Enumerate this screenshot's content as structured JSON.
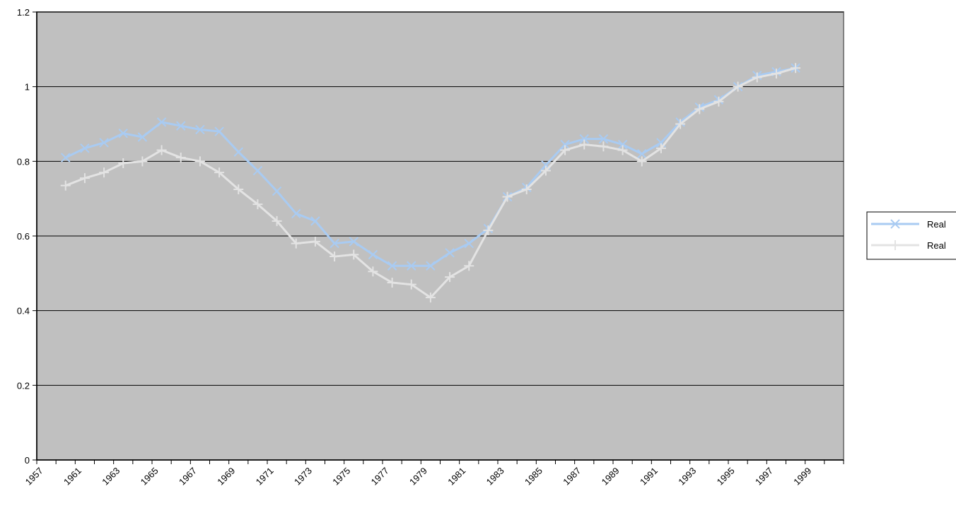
{
  "chart_data": {
    "type": "line",
    "categories": [
      "1957",
      null,
      "1961",
      null,
      "1963",
      null,
      "1965",
      null,
      "1967",
      null,
      "1969",
      null,
      "1971",
      null,
      "1973",
      null,
      "1975",
      null,
      "1977",
      null,
      "1979",
      null,
      "1981",
      null,
      "1983",
      null,
      "1985",
      null,
      "1987",
      null,
      "1989",
      null,
      "1991",
      null,
      "1993",
      null,
      "1995",
      null,
      "1997",
      null,
      "1999",
      null
    ],
    "series": [
      {
        "name": "Real",
        "color": "#a9cbf2",
        "marker": "x",
        "values": [
          null,
          0.81,
          0.835,
          0.85,
          0.875,
          0.865,
          0.905,
          0.895,
          0.885,
          0.88,
          0.825,
          0.775,
          0.72,
          0.66,
          0.64,
          0.58,
          0.585,
          0.55,
          0.52,
          0.52,
          0.52,
          0.555,
          0.58,
          0.62,
          0.705,
          0.73,
          0.79,
          0.845,
          0.86,
          0.86,
          0.845,
          0.82,
          0.85,
          0.905,
          0.945,
          0.965,
          1.0,
          1.03,
          1.04,
          1.05,
          null,
          null
        ]
      },
      {
        "name": "Real",
        "color": "#e3e3e3",
        "marker": "+",
        "values": [
          null,
          0.735,
          0.755,
          0.77,
          0.795,
          0.8,
          0.83,
          0.81,
          0.8,
          0.77,
          0.725,
          0.685,
          0.64,
          0.58,
          0.585,
          0.545,
          0.55,
          0.505,
          0.475,
          0.47,
          0.435,
          0.49,
          0.52,
          0.615,
          0.705,
          0.725,
          0.775,
          0.83,
          0.845,
          0.84,
          0.83,
          0.8,
          0.835,
          0.9,
          0.94,
          0.96,
          1.0,
          1.025,
          1.035,
          1.05,
          null,
          null
        ]
      }
    ],
    "ylim": [
      0,
      1.2
    ],
    "yticks": [
      0,
      0.2,
      0.4,
      0.6,
      0.8,
      1,
      1.2
    ],
    "grid": true,
    "legend": "right",
    "plot_background": "#c0c0c0"
  }
}
